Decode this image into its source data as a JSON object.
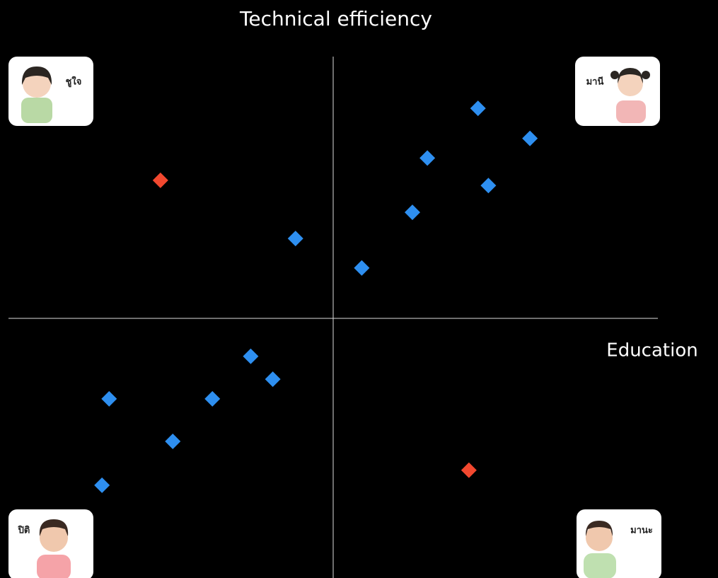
{
  "chart_data": {
    "type": "scatter",
    "title": "Technical efficiency",
    "x_label": "Education",
    "xlim": [
      -5,
      5
    ],
    "ylim": [
      -4,
      4
    ],
    "quadrants": [
      {
        "label": "ชูใจ",
        "corner": "top-left"
      },
      {
        "label": "มานี",
        "corner": "top-right"
      },
      {
        "label": "ปิติ",
        "corner": "bottom-left"
      },
      {
        "label": "มานะ",
        "corner": "bottom-right"
      }
    ],
    "series": [
      {
        "color": "#2e8ff0",
        "x": [
          2.23,
          3.03,
          1.45,
          2.39,
          1.22,
          -0.58,
          0.44,
          -1.27,
          -0.93,
          -3.45,
          -1.86,
          -2.47,
          -3.56
        ],
        "values": [
          3.21,
          2.75,
          2.45,
          2.03,
          1.62,
          1.22,
          0.77,
          -0.58,
          -0.93,
          -1.23,
          -1.23,
          -1.88,
          -2.55
        ]
      },
      {
        "color": "#f2482f",
        "x": [
          -2.66,
          2.09
        ],
        "values": [
          2.11,
          -2.32
        ]
      }
    ]
  }
}
